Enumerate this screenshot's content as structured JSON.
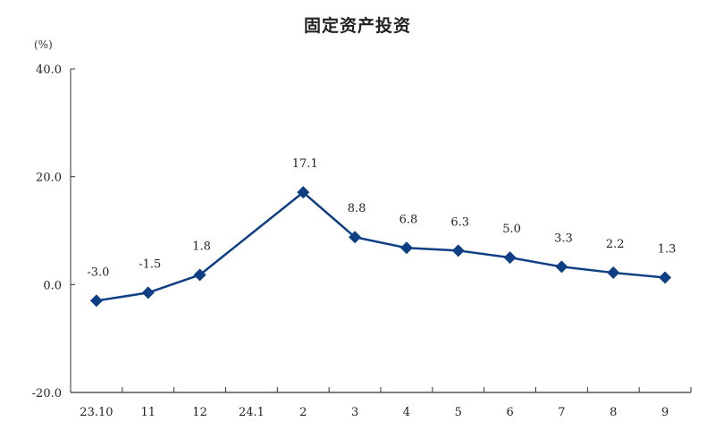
{
  "chart_data": {
    "type": "line",
    "title": "固定资产投资",
    "ylabel": "(%)",
    "xlabel": "",
    "ylim": [
      -20,
      40
    ],
    "yticks": [
      -20.0,
      0.0,
      20.0,
      40.0
    ],
    "ytick_labels": [
      "-20.0",
      "0.0",
      "20.0",
      "40.0"
    ],
    "categories": [
      "23.10",
      "11",
      "12",
      "24.1",
      "2",
      "3",
      "4",
      "5",
      "6",
      "7",
      "8",
      "9"
    ],
    "series": [
      {
        "name": "固定资产投资",
        "color": "#0e3f84",
        "marker": "diamond",
        "points": [
          {
            "x": "23.10",
            "y": -3.0,
            "label": "-3.0"
          },
          {
            "x": "11",
            "y": -1.5,
            "label": "-1.5"
          },
          {
            "x": "12",
            "y": 1.8,
            "label": "1.8"
          },
          {
            "x": "2",
            "y": 17.1,
            "label": "17.1"
          },
          {
            "x": "3",
            "y": 8.8,
            "label": "8.8"
          },
          {
            "x": "4",
            "y": 6.8,
            "label": "6.8"
          },
          {
            "x": "5",
            "y": 6.3,
            "label": "6.3"
          },
          {
            "x": "6",
            "y": 5.0,
            "label": "5.0"
          },
          {
            "x": "7",
            "y": 3.3,
            "label": "3.3"
          },
          {
            "x": "8",
            "y": 2.2,
            "label": "2.2"
          },
          {
            "x": "9",
            "y": 1.3,
            "label": "1.3"
          }
        ]
      }
    ],
    "grid": false,
    "legend": null
  }
}
